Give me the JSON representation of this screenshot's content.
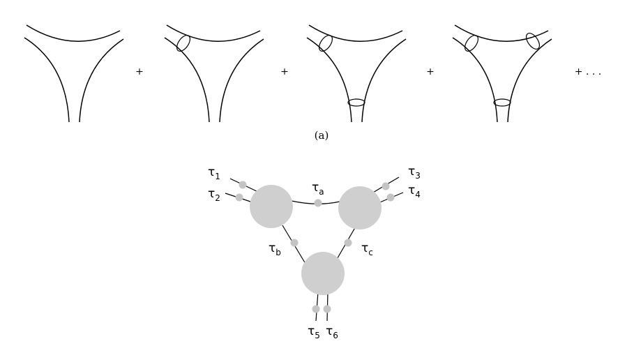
{
  "panel_a": {
    "plus_signs": [
      "+",
      "+",
      "+",
      "+ . . ."
    ],
    "caption": "(a)"
  },
  "panel_b": {
    "labels": {
      "tau1": {
        "base": "τ",
        "sub": "1"
      },
      "tau2": {
        "base": "τ",
        "sub": "2"
      },
      "tau3": {
        "base": "τ",
        "sub": "3"
      },
      "tau4": {
        "base": "τ",
        "sub": "4"
      },
      "tau5": {
        "base": "τ",
        "sub": "5"
      },
      "tau6": {
        "base": "τ",
        "sub": "6"
      },
      "taua": {
        "base": "τ",
        "sub": "a"
      },
      "taub": {
        "base": "τ",
        "sub": "b"
      },
      "tauc": {
        "base": "τ",
        "sub": "c"
      }
    }
  },
  "colors": {
    "line": "#000000",
    "blob": "#cfcfcf",
    "dot": "#c4c4c4"
  }
}
